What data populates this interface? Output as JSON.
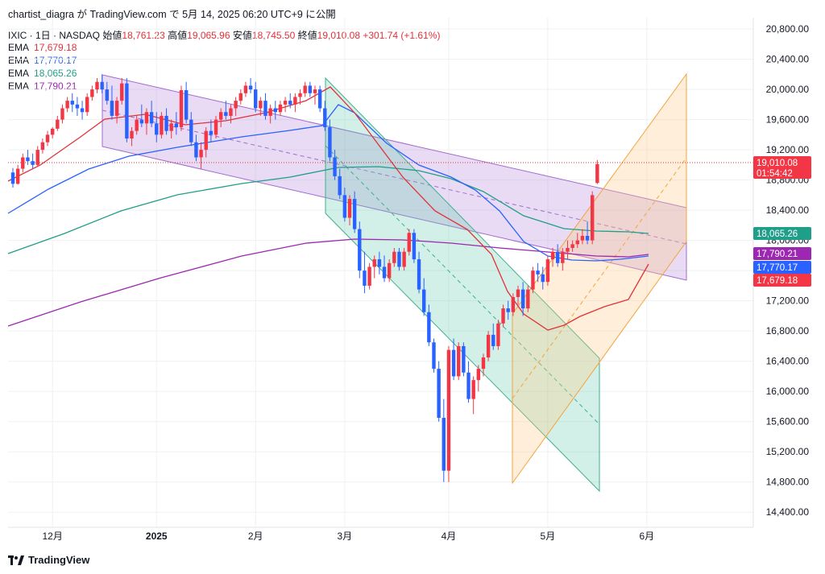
{
  "header": {
    "author": "chartist_diagra",
    "text": "が TradingView.com で 5月 14, 2025 06:20 UTC+9 に公開"
  },
  "ohlc": {
    "symbol": "IXIC · 1日 · NASDAQ",
    "open_label": "始値",
    "open": "18,761.23",
    "high_label": "高値",
    "high": "19,065.96",
    "low_label": "安値",
    "low": "18,745.50",
    "close_label": "終値",
    "close": "19,010.08",
    "change": "+301.74 (+1.61%)"
  },
  "emas": [
    {
      "name": "EMA",
      "value": "17,679.18",
      "color": "#e0323a"
    },
    {
      "name": "EMA",
      "value": "17,770.17",
      "color": "#3a6ee0"
    },
    {
      "name": "EMA",
      "value": "18,065.26",
      "color": "#1f9e89"
    },
    {
      "name": "EMA",
      "value": "17,790.21",
      "color": "#9c27b0"
    }
  ],
  "brand": "TradingView",
  "price_tags": [
    {
      "value": "19,010.08",
      "sub": "01:54:42",
      "color": "#f23645"
    },
    {
      "value": "18,065.26",
      "color": "#1f9e89"
    },
    {
      "value": "17,790.21",
      "color": "#9c27b0"
    },
    {
      "value": "17,770.17",
      "color": "#2962ff"
    },
    {
      "value": "17,679.18",
      "color": "#f23645"
    }
  ],
  "chart_data": {
    "type": "candlestick",
    "y_ticks": [
      14400,
      14800,
      15200,
      15600,
      16000,
      16400,
      16800,
      17200,
      17600,
      18000,
      18400,
      18800,
      19200,
      19600,
      20000,
      20400,
      20800
    ],
    "y_tick_labels": [
      "14,400.00",
      "14,800.00",
      "15,200.00",
      "15,600.00",
      "16,000.00",
      "16,400.00",
      "16,800.00",
      "17,200.00",
      "17,600.00",
      "18,000.00",
      "18,400.00",
      "18,800.00",
      "19,200.00",
      "19,600.00",
      "20,000.00",
      "20,400.00",
      "20,800.00"
    ],
    "ylim": [
      14200,
      20950
    ],
    "x_ticks": [
      {
        "label": "12月",
        "index": 8
      },
      {
        "label": "2025",
        "index": 29,
        "bold": true
      },
      {
        "label": "2月",
        "index": 49
      },
      {
        "label": "3月",
        "index": 67
      },
      {
        "label": "4月",
        "index": 88
      },
      {
        "label": "5月",
        "index": 108
      },
      {
        "label": "6月",
        "index": 128
      }
    ],
    "x_range": [
      0,
      136
    ],
    "last_close": 19010.08,
    "candles": [
      [
        18900,
        18960,
        18700,
        18750
      ],
      [
        18750,
        19000,
        18740,
        18950
      ],
      [
        18950,
        19150,
        18900,
        19100
      ],
      [
        19100,
        19200,
        19000,
        19050
      ],
      [
        19050,
        19150,
        18950,
        19000
      ],
      [
        19000,
        19250,
        18980,
        19200
      ],
      [
        19200,
        19350,
        19150,
        19300
      ],
      [
        19300,
        19450,
        19250,
        19400
      ],
      [
        19400,
        19500,
        19350,
        19480
      ],
      [
        19480,
        19650,
        19450,
        19600
      ],
      [
        19600,
        19800,
        19550,
        19750
      ],
      [
        19750,
        19900,
        19700,
        19850
      ],
      [
        19850,
        19950,
        19700,
        19800
      ],
      [
        19800,
        19900,
        19650,
        19750
      ],
      [
        19750,
        19850,
        19600,
        19700
      ],
      [
        19700,
        19950,
        19650,
        19900
      ],
      [
        19900,
        20050,
        19850,
        20000
      ],
      [
        20000,
        20150,
        19950,
        20100
      ],
      [
        20100,
        20200,
        19950,
        20000
      ],
      [
        20000,
        20100,
        19800,
        19850
      ],
      [
        19850,
        20050,
        19600,
        19650
      ],
      [
        19650,
        19900,
        19550,
        19850
      ],
      [
        19850,
        20150,
        19800,
        20080
      ],
      [
        20080,
        20150,
        19300,
        19350
      ],
      [
        19350,
        19500,
        19250,
        19450
      ],
      [
        19450,
        19650,
        19400,
        19600
      ],
      [
        19600,
        19800,
        19500,
        19550
      ],
      [
        19550,
        19750,
        19400,
        19700
      ],
      [
        19700,
        19850,
        19500,
        19550
      ],
      [
        19550,
        19700,
        19300,
        19400
      ],
      [
        19400,
        19700,
        19350,
        19650
      ],
      [
        19650,
        19750,
        19400,
        19450
      ],
      [
        19450,
        19600,
        19350,
        19550
      ],
      [
        19550,
        19700,
        19400,
        19500
      ],
      [
        19500,
        20050,
        19450,
        19990
      ],
      [
        19990,
        20100,
        19550,
        19600
      ],
      [
        19600,
        19700,
        19250,
        19300
      ],
      [
        19300,
        19400,
        19050,
        19100
      ],
      [
        19100,
        19300,
        18950,
        19200
      ],
      [
        19200,
        19500,
        19100,
        19450
      ],
      [
        19450,
        19600,
        19300,
        19400
      ],
      [
        19400,
        19650,
        19350,
        19600
      ],
      [
        19600,
        19750,
        19500,
        19700
      ],
      [
        19700,
        19850,
        19600,
        19650
      ],
      [
        19650,
        19800,
        19550,
        19750
      ],
      [
        19750,
        19900,
        19650,
        19850
      ],
      [
        19850,
        20000,
        19800,
        19950
      ],
      [
        19950,
        20100,
        19900,
        20050
      ],
      [
        20050,
        20150,
        19950,
        20000
      ],
      [
        20000,
        20100,
        19700,
        19750
      ],
      [
        19750,
        19900,
        19650,
        19850
      ],
      [
        19850,
        19950,
        19600,
        19650
      ],
      [
        19650,
        19800,
        19550,
        19750
      ],
      [
        19750,
        19850,
        19600,
        19700
      ],
      [
        19700,
        19850,
        19650,
        19800
      ],
      [
        19800,
        19900,
        19700,
        19850
      ],
      [
        19850,
        19950,
        19750,
        19800
      ],
      [
        19800,
        19950,
        19700,
        19900
      ],
      [
        19900,
        20000,
        19800,
        19950
      ],
      [
        19950,
        20100,
        19900,
        20050
      ],
      [
        20050,
        20100,
        19900,
        19950
      ],
      [
        19950,
        20050,
        19800,
        20000
      ],
      [
        20000,
        20050,
        19700,
        19750
      ],
      [
        19750,
        19850,
        19450,
        19500
      ],
      [
        19500,
        19600,
        19050,
        19100
      ],
      [
        19100,
        19200,
        18800,
        18850
      ],
      [
        18850,
        18950,
        18550,
        18600
      ],
      [
        18600,
        18700,
        18250,
        18300
      ],
      [
        18300,
        18600,
        18200,
        18550
      ],
      [
        18550,
        18650,
        18100,
        18150
      ],
      [
        18150,
        18250,
        17500,
        17600
      ],
      [
        17600,
        17850,
        17300,
        17400
      ],
      [
        17400,
        17700,
        17350,
        17650
      ],
      [
        17650,
        17800,
        17500,
        17750
      ],
      [
        17750,
        17850,
        17550,
        17650
      ],
      [
        17650,
        17800,
        17450,
        17500
      ],
      [
        17500,
        17750,
        17450,
        17700
      ],
      [
        17700,
        17900,
        17650,
        17850
      ],
      [
        17850,
        17900,
        17600,
        17650
      ],
      [
        17650,
        17900,
        17600,
        17850
      ],
      [
        17850,
        18150,
        17800,
        18100
      ],
      [
        18100,
        18150,
        17700,
        17750
      ],
      [
        17750,
        17850,
        17300,
        17350
      ],
      [
        17350,
        17500,
        17000,
        17050
      ],
      [
        17050,
        17150,
        16600,
        16650
      ],
      [
        16650,
        16700,
        16250,
        16300
      ],
      [
        16300,
        16400,
        15600,
        15650
      ],
      [
        15650,
        15900,
        14800,
        14950
      ],
      [
        14950,
        16600,
        14800,
        16550
      ],
      [
        16550,
        16700,
        16150,
        16200
      ],
      [
        16200,
        16650,
        16150,
        16600
      ],
      [
        16600,
        16650,
        16200,
        16250
      ],
      [
        16250,
        16400,
        15850,
        15900
      ],
      [
        15900,
        16200,
        15700,
        16150
      ],
      [
        16150,
        16350,
        16000,
        16300
      ],
      [
        16300,
        16500,
        16200,
        16450
      ],
      [
        16450,
        16800,
        16400,
        16750
      ],
      [
        16750,
        16900,
        16550,
        16600
      ],
      [
        16600,
        16950,
        16550,
        16900
      ],
      [
        16900,
        17150,
        16850,
        17100
      ],
      [
        17100,
        17200,
        16950,
        17050
      ],
      [
        17050,
        17300,
        17000,
        17250
      ],
      [
        17250,
        17400,
        17150,
        17350
      ],
      [
        17350,
        17450,
        17000,
        17100
      ],
      [
        17100,
        17400,
        17050,
        17350
      ],
      [
        17350,
        17650,
        17300,
        17600
      ],
      [
        17600,
        17700,
        17450,
        17550
      ],
      [
        17550,
        17650,
        17350,
        17450
      ],
      [
        17450,
        17800,
        17400,
        17750
      ],
      [
        17750,
        17900,
        17650,
        17850
      ],
      [
        17850,
        17950,
        17650,
        17700
      ],
      [
        17700,
        17900,
        17600,
        17850
      ],
      [
        17850,
        18000,
        17750,
        17900
      ],
      [
        17900,
        18000,
        17850,
        17950
      ],
      [
        17950,
        18100,
        17900,
        18000
      ],
      [
        18000,
        18150,
        17950,
        18060
      ],
      [
        18060,
        18250,
        17950,
        18000
      ],
      [
        18000,
        18650,
        17950,
        18600
      ],
      [
        18761.23,
        19065.96,
        18745.5,
        19010.08
      ]
    ]
  }
}
